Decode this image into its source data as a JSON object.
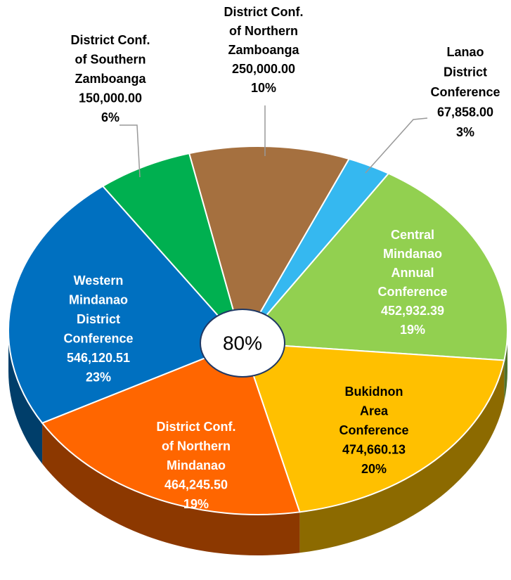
{
  "chart_data": {
    "type": "pie",
    "categories": [
      [
        "District Conf.",
        "of Northern",
        "Zamboanga"
      ],
      [
        "Lanao",
        "District",
        "Conference"
      ],
      [
        "Central",
        "Mindanao",
        "Annual",
        "Conference"
      ],
      [
        "Bukidnon",
        "Area",
        "Conference"
      ],
      [
        "District Conf.",
        "of Northern",
        "Mindanao"
      ],
      [
        "Western",
        "Mindanao",
        "District",
        "Conference"
      ],
      [
        "District Conf.",
        "of Southern",
        "Zamboanga"
      ]
    ],
    "values": [
      250000.0,
      67858.0,
      452932.39,
      474660.13,
      464245.5,
      546120.51,
      150000.0
    ],
    "value_labels": [
      "250,000.00",
      "67,858.00",
      "452,932.39",
      "474,660.13",
      "464,245.50",
      "546,120.51",
      "150,000.00"
    ],
    "percents": [
      10,
      3,
      19,
      20,
      19,
      23,
      6
    ],
    "percent_labels": [
      "10%",
      "3%",
      "19%",
      "20%",
      "19%",
      "23%",
      "6%"
    ],
    "colors": [
      "#a5703f",
      "#35b8f0",
      "#92d050",
      "#ffc000",
      "#ff6600",
      "#0070c0",
      "#00b050"
    ],
    "center_label": "80%"
  }
}
